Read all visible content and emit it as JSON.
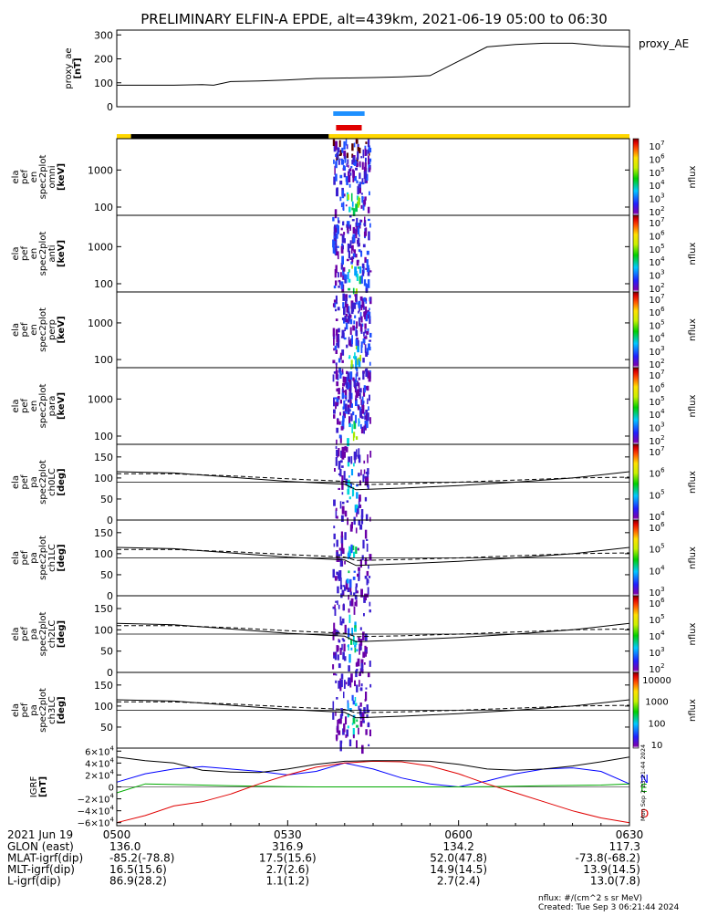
{
  "title": "PRELIMINARY ELFIN-A EPDE, alt=439km, 2021-06-19 05:00 to 06:30",
  "colors": {
    "axis": "#000000",
    "sunlight": "#FFD700",
    "shadow": "#000000",
    "blue_bar": "#1E90FF",
    "red_bar": "#E00000",
    "grf_n": "#0000FF",
    "grf_e": "#00AA00",
    "grf_d": "#E00000",
    "grf_total": "#000000"
  },
  "time_axis": {
    "ticks": [
      "0500",
      "0530",
      "0600",
      "0630"
    ],
    "tick_values_min": [
      0,
      30,
      60,
      90
    ],
    "range_min": [
      0,
      90
    ]
  },
  "ephemeris": {
    "date_label": "2021 Jun 19",
    "rows": [
      {
        "label": "GLON (east)",
        "values": [
          "136.0",
          "316.9",
          "134.2",
          "117.3"
        ]
      },
      {
        "label": "MLAT-igrf(dip)",
        "values": [
          "-85.2(-78.8)",
          "17.5(15.6)",
          "52.0(47.8)",
          "-73.8(-68.2)"
        ]
      },
      {
        "label": "MLT-igrf(dip)",
        "values": [
          "16.5(15.6)",
          "2.7(2.6)",
          "14.9(14.5)",
          "13.9(14.5)"
        ]
      },
      {
        "label": "L-igrf(dip)",
        "values": [
          "86.9(28.2)",
          "1.1(1.2)",
          "2.7(2.4)",
          "13.0(7.8)"
        ]
      }
    ]
  },
  "footer": {
    "units": "nflux: #/(cm^2 s sr MeV)",
    "created": "Created: Tue Sep  3 06:21:44 2024",
    "side_stamp": "Mon Sep  2 23:21:44 2024"
  },
  "chart_data": [
    {
      "type": "line",
      "panel": "proxy_ae",
      "ylabel_lines": [
        "proxy_ae",
        "[nT]"
      ],
      "legend": "proxy_AE",
      "ylim": [
        0,
        320
      ],
      "yticks": [
        0,
        100,
        200,
        300
      ],
      "x": [
        0,
        5,
        10,
        15,
        17,
        20,
        25,
        30,
        35,
        40,
        45,
        50,
        55,
        60,
        65,
        70,
        75,
        80,
        85,
        90
      ],
      "y": [
        90,
        90,
        90,
        92,
        90,
        105,
        108,
        112,
        118,
        120,
        122,
        125,
        130,
        190,
        250,
        260,
        265,
        265,
        255,
        250
      ]
    },
    {
      "type": "timeline",
      "panel": "science_zones",
      "blue_bar": [
        38.0,
        43.5
      ],
      "red_bar": [
        38.5,
        43.0
      ]
    },
    {
      "type": "timeline",
      "panel": "sunlight",
      "shadow": [
        2.5,
        37.2
      ],
      "sunlight": [
        [
          0,
          2.5
        ],
        [
          37.2,
          90
        ]
      ]
    },
    {
      "type": "heatmap",
      "panel": "spec_omni",
      "ylabel_lines": [
        "ela",
        "pef",
        "en",
        "spec2plot",
        "omni",
        "[keV]"
      ],
      "yscale": "log",
      "yticks": [
        100,
        1000
      ],
      "colorbar": {
        "label": "nflux",
        "scale": "log",
        "ticks": [
          "10^7",
          "10^6",
          "10^5",
          "10^4",
          "10^3",
          "10^2"
        ]
      }
    },
    {
      "type": "heatmap",
      "panel": "spec_anti",
      "ylabel_lines": [
        "ela",
        "pef",
        "en",
        "spec2plot",
        "anti",
        "[keV]"
      ],
      "yscale": "log",
      "yticks": [
        100,
        1000
      ],
      "colorbar": {
        "label": "nflux",
        "scale": "log",
        "ticks": [
          "10^7",
          "10^6",
          "10^5",
          "10^4",
          "10^3",
          "10^2"
        ]
      }
    },
    {
      "type": "heatmap",
      "panel": "spec_perp",
      "ylabel_lines": [
        "ela",
        "pef",
        "en",
        "spec2plot",
        "perp",
        "[keV]"
      ],
      "yscale": "log",
      "yticks": [
        100,
        1000
      ],
      "colorbar": {
        "label": "nflux",
        "scale": "log",
        "ticks": [
          "10^7",
          "10^6",
          "10^5",
          "10^4",
          "10^3",
          "10^2"
        ]
      }
    },
    {
      "type": "heatmap",
      "panel": "spec_para",
      "ylabel_lines": [
        "ela",
        "pef",
        "en",
        "spec2plot",
        "para",
        "[keV]"
      ],
      "yscale": "log",
      "yticks": [
        100,
        1000
      ],
      "colorbar": {
        "label": "nflux",
        "scale": "log",
        "ticks": [
          "10^7",
          "10^6",
          "10^5",
          "10^4",
          "10^3",
          "10^2"
        ]
      }
    },
    {
      "type": "heatmap",
      "panel": "pa_ch0",
      "ylabel_lines": [
        "ela",
        "pef",
        "pa",
        "spec2plot",
        "ch0LC",
        "[deg]"
      ],
      "ylim": [
        0,
        180
      ],
      "yticks": [
        0,
        50,
        100,
        150
      ],
      "colorbar": {
        "label": "nflux",
        "scale": "log",
        "ticks": [
          "10^7",
          "10^6",
          "10^5",
          "10^4"
        ]
      }
    },
    {
      "type": "heatmap",
      "panel": "pa_ch1",
      "ylabel_lines": [
        "ela",
        "pef",
        "pa",
        "spec2plot",
        "ch1LC",
        "[deg]"
      ],
      "ylim": [
        0,
        180
      ],
      "yticks": [
        0,
        50,
        100,
        150
      ],
      "colorbar": {
        "label": "nflux",
        "scale": "log",
        "ticks": [
          "10^6",
          "10^5",
          "10^4",
          "10^3"
        ]
      }
    },
    {
      "type": "heatmap",
      "panel": "pa_ch2",
      "ylabel_lines": [
        "ela",
        "pef",
        "pa",
        "spec2plot",
        "ch2LC",
        "[deg]"
      ],
      "ylim": [
        0,
        180
      ],
      "yticks": [
        0,
        50,
        100,
        150
      ],
      "colorbar": {
        "label": "nflux",
        "scale": "log",
        "ticks": [
          "10^6",
          "10^5",
          "10^4",
          "10^3",
          "10^2"
        ]
      }
    },
    {
      "type": "heatmap",
      "panel": "pa_ch3",
      "ylabel_lines": [
        "ela",
        "pef",
        "pa",
        "spec2plot",
        "ch3LC",
        "[deg]"
      ],
      "ylim": [
        0,
        180
      ],
      "yticks": [
        50,
        100,
        150
      ],
      "colorbar": {
        "label": "nflux",
        "scale": "linear-log",
        "ticks": [
          "10000",
          "1000",
          "100",
          "10"
        ]
      }
    },
    {
      "type": "line",
      "panel": "igrf",
      "ylabel_lines": [
        "IGRF",
        "[nT]"
      ],
      "ylim": [
        -65000,
        65000
      ],
      "yticks": [
        "6×10^4",
        "4×10^4",
        "2×10^4",
        "0",
        "−2×10^4",
        "−4×10^4",
        "−6×10^4"
      ],
      "ytick_values": [
        60000,
        40000,
        20000,
        0,
        -20000,
        -40000,
        -60000
      ],
      "legend": [
        "N",
        "E",
        "D"
      ],
      "x": [
        0,
        5,
        10,
        15,
        20,
        25,
        30,
        35,
        40,
        45,
        50,
        55,
        60,
        65,
        70,
        75,
        80,
        85,
        90
      ],
      "series": [
        {
          "name": "N",
          "values": [
            8000,
            22000,
            30000,
            34000,
            30000,
            26000,
            20000,
            26000,
            40000,
            30000,
            15000,
            5000,
            0,
            10000,
            22000,
            30000,
            32000,
            26000,
            5000
          ]
        },
        {
          "name": "E",
          "values": [
            -10000,
            5000,
            4000,
            3000,
            2000,
            1000,
            500,
            0,
            0,
            0,
            0,
            0,
            0,
            500,
            1000,
            2000,
            2500,
            3000,
            5000
          ]
        },
        {
          "name": "D",
          "values": [
            -60000,
            -48000,
            -32000,
            -25000,
            -12000,
            5000,
            20000,
            33000,
            40000,
            43000,
            42000,
            35000,
            22000,
            5000,
            -10000,
            -25000,
            -40000,
            -52000,
            -60000
          ]
        },
        {
          "values": [
            50000,
            44000,
            40000,
            28000,
            25000,
            24000,
            30000,
            38000,
            43000,
            44000,
            44000,
            43000,
            38000,
            30000,
            28000,
            30000,
            35000,
            42000,
            50000
          ]
        }
      ]
    }
  ]
}
